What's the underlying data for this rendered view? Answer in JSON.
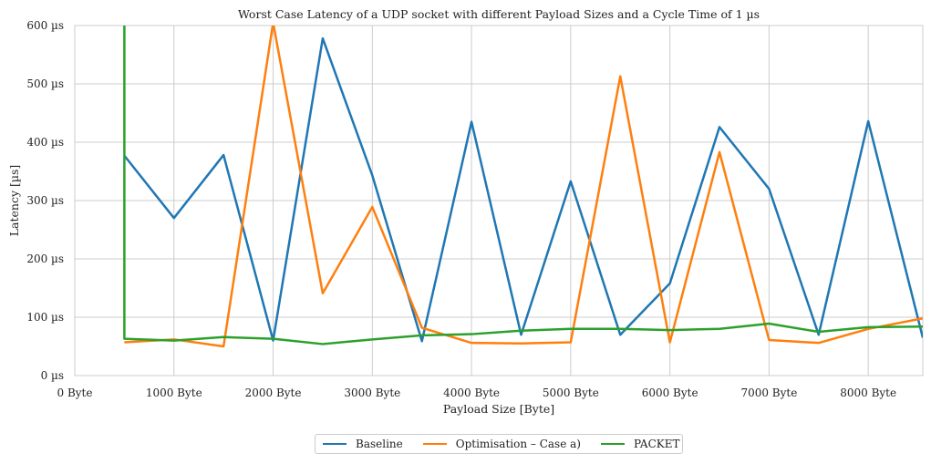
{
  "chart_data": {
    "type": "line",
    "title": "Worst Case Latency of a UDP socket with different Payload Sizes and a Cycle Time of 1 µs",
    "xlabel": "Payload Size [Byte]",
    "ylabel": "Latency [µs]",
    "xlim": [
      0,
      8550
    ],
    "ylim": [
      0,
      600
    ],
    "x_ticks": [
      0,
      1000,
      2000,
      3000,
      4000,
      5000,
      6000,
      7000,
      8000
    ],
    "x_tick_labels": [
      "0 Byte",
      "1000 Byte",
      "2000 Byte",
      "3000 Byte",
      "4000 Byte",
      "5000 Byte",
      "6000 Byte",
      "7000 Byte",
      "8000 Byte"
    ],
    "y_ticks": [
      0,
      100,
      200,
      300,
      400,
      500,
      600
    ],
    "y_tick_labels": [
      "0 µs",
      "100 µs",
      "200 µs",
      "300 µs",
      "400 µs",
      "500 µs",
      "600 µs"
    ],
    "grid": true,
    "legend_position": "bottom-center",
    "series": [
      {
        "name": "Baseline",
        "color": "#1f77b4",
        "x": [
          500,
          1000,
          1500,
          2000,
          2500,
          3000,
          3500,
          4000,
          4500,
          5000,
          5500,
          6000,
          6500,
          7000,
          7500,
          8000,
          8550
        ],
        "y": [
          377,
          270,
          378,
          60,
          578,
          343,
          59,
          435,
          70,
          333,
          70,
          158,
          426,
          320,
          70,
          436,
          65
        ]
      },
      {
        "name": "Optimisation – Case a)",
        "color": "#ff7f0e",
        "x": [
          500,
          1000,
          1500,
          2000,
          2500,
          3000,
          3500,
          4000,
          4500,
          5000,
          5500,
          6000,
          6500,
          7000,
          7500,
          8000,
          8550
        ],
        "y": [
          57,
          62,
          50,
          605,
          141,
          289,
          82,
          56,
          55,
          57,
          513,
          57,
          383,
          61,
          56,
          80,
          98
        ]
      },
      {
        "name": "PACKET",
        "color": "#2ca02c",
        "x": [
          500,
          500,
          1000,
          1500,
          2000,
          2500,
          3000,
          3500,
          4000,
          4500,
          5000,
          5500,
          6000,
          6500,
          7000,
          7500,
          8000,
          8550
        ],
        "y": [
          620,
          63,
          60,
          66,
          63,
          54,
          62,
          69,
          71,
          77,
          80,
          80,
          78,
          80,
          89,
          75,
          83,
          84
        ]
      }
    ]
  }
}
